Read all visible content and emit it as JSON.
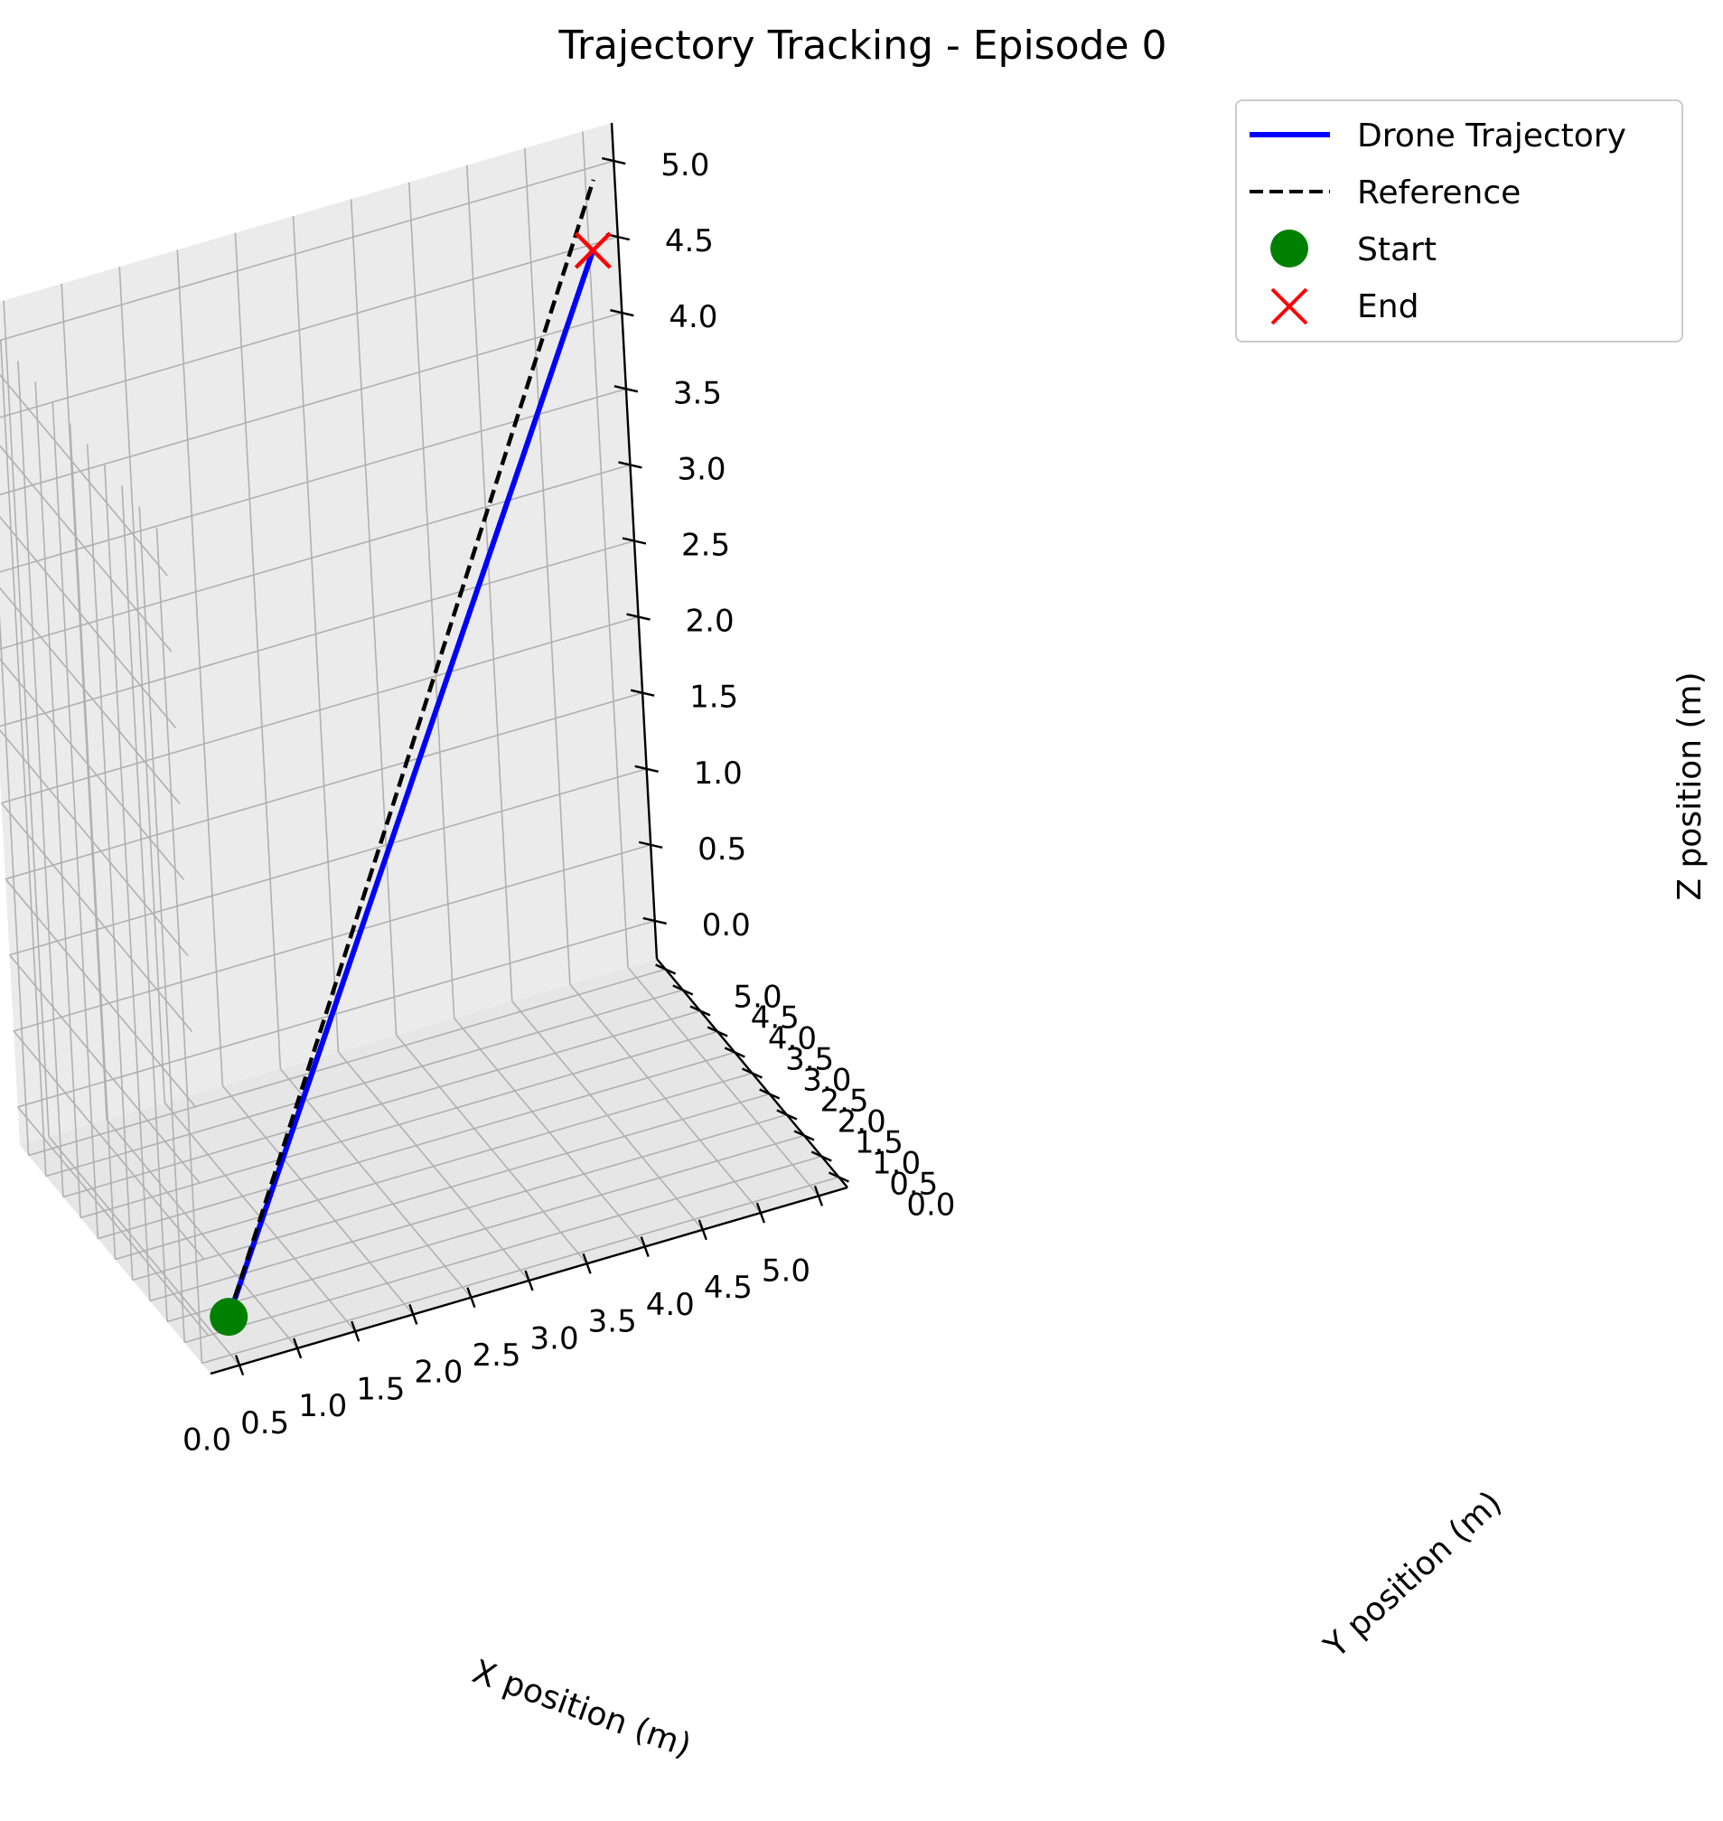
{
  "chart_data": {
    "type": "line3d",
    "title": "Trajectory Tracking - Episode 0",
    "xlabel": "X position (m)",
    "ylabel": "Y position (m)",
    "zlabel": "Z position (m)",
    "xlim": [
      -0.25,
      5.25
    ],
    "ylim": [
      -0.25,
      5.25
    ],
    "zlim": [
      -0.25,
      5.25
    ],
    "x_ticks": [
      "0.0",
      "0.5",
      "1.0",
      "1.5",
      "2.0",
      "2.5",
      "3.0",
      "3.5",
      "4.0",
      "4.5",
      "5.0"
    ],
    "y_ticks": [
      "0.0",
      "0.5",
      "1.0",
      "1.5",
      "2.0",
      "2.5",
      "3.0",
      "3.5",
      "4.0",
      "4.5",
      "5.0"
    ],
    "z_ticks": [
      "0.0",
      "0.5",
      "1.0",
      "1.5",
      "2.0",
      "2.5",
      "3.0",
      "3.5",
      "4.0",
      "4.5",
      "5.0"
    ],
    "grid": true,
    "legend_position": "top-right",
    "series": [
      {
        "name": "Drone Trajectory",
        "style": "solid",
        "color": "#0000ff",
        "points": [
          [
            0.0,
            0.0,
            0.0
          ],
          [
            1.0,
            1.0,
            0.92
          ],
          [
            2.0,
            2.0,
            1.84
          ],
          [
            3.0,
            3.0,
            2.76
          ],
          [
            4.0,
            4.0,
            3.68
          ],
          [
            4.95,
            4.95,
            4.56
          ]
        ]
      },
      {
        "name": "Reference",
        "style": "dashed",
        "color": "#000000",
        "points": [
          [
            0.0,
            0.0,
            0.0
          ],
          [
            5.0,
            5.0,
            5.0
          ]
        ]
      },
      {
        "name": "Start",
        "style": "marker-circle",
        "color": "#008000",
        "points": [
          [
            0.0,
            0.0,
            0.0
          ]
        ]
      },
      {
        "name": "End",
        "style": "marker-x",
        "color": "#ff0000",
        "points": [
          [
            4.95,
            4.95,
            4.56
          ]
        ]
      }
    ]
  }
}
